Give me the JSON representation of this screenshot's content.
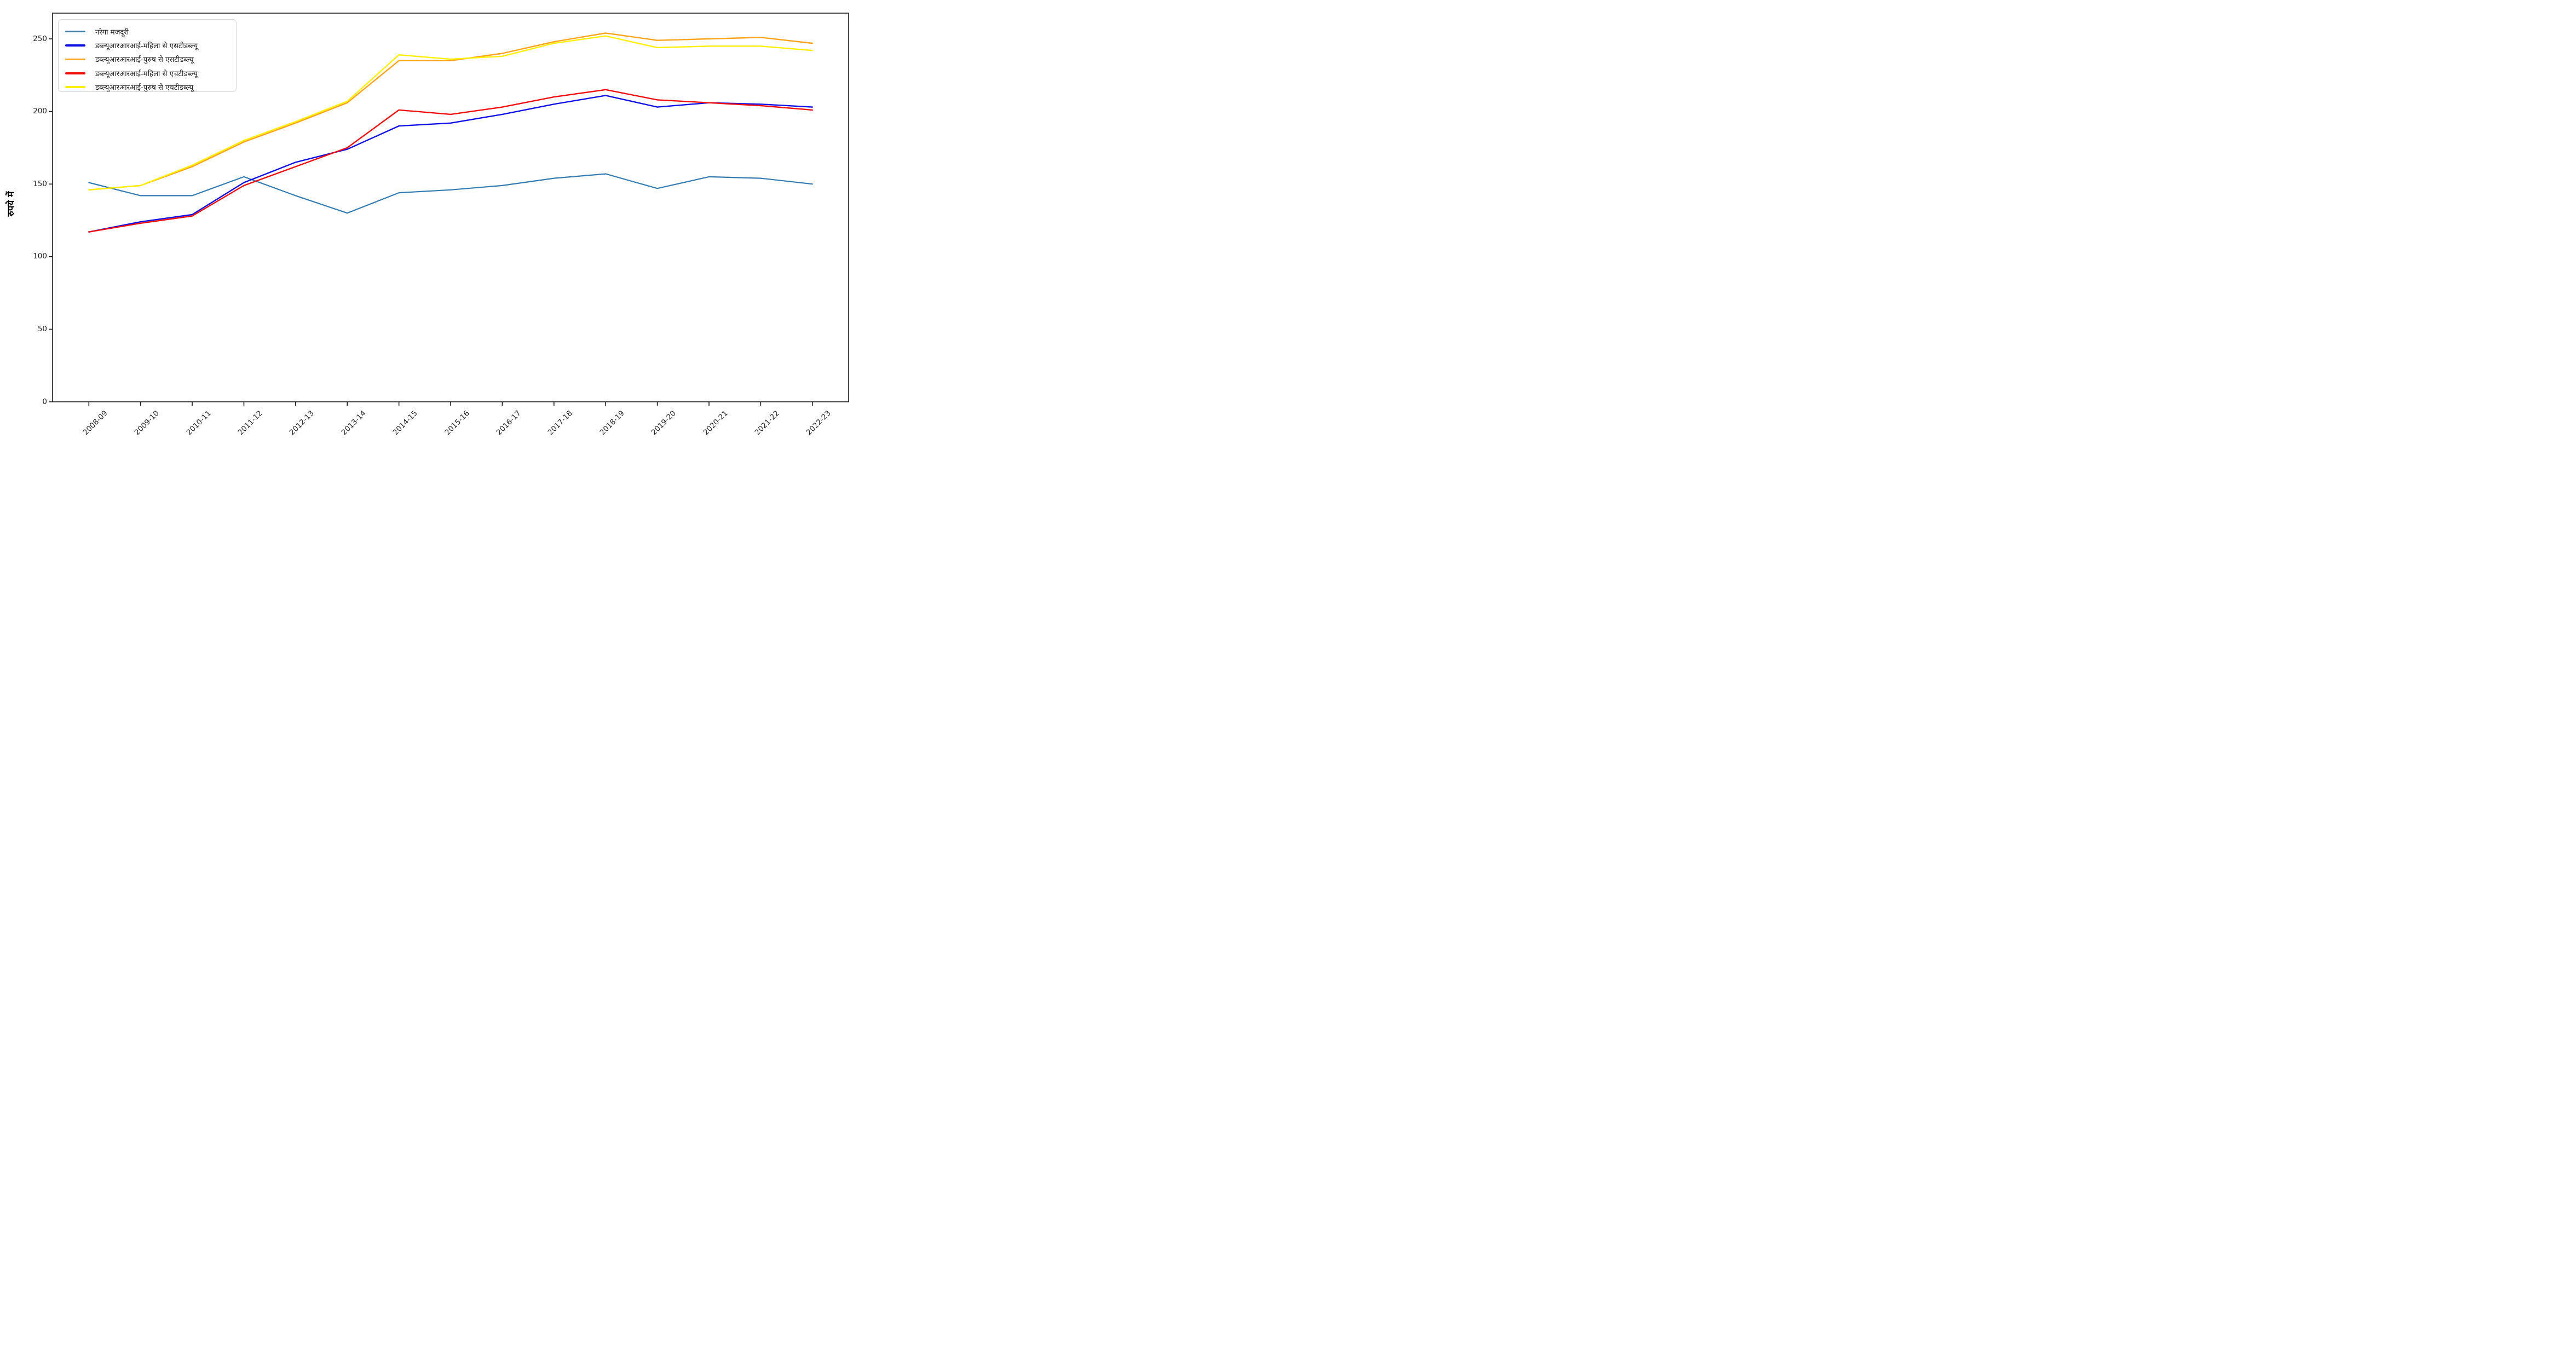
{
  "chart_data": {
    "type": "line",
    "title": "",
    "xlabel": "",
    "ylabel": "रुपये में",
    "categories": [
      "2008-09",
      "2009-10",
      "2010-11",
      "2011-12",
      "2012-13",
      "2013-14",
      "2014-15",
      "2015-16",
      "2016-17",
      "2017-18",
      "2018-19",
      "2019-20",
      "2020-21",
      "2021-22",
      "2022-23"
    ],
    "series": [
      {
        "name": "नरेगा मजदूरी",
        " color_note": "steel blue",
        "color": "#337cb2",
        "values": [
          151,
          142,
          142,
          155,
          142,
          130,
          144,
          146,
          149,
          154,
          157,
          147,
          155,
          154,
          150
        ]
      },
      {
        "name": "डब्ल्यूआरआरआई-महिला से एसटीडब्ल्यू",
        "color": "#0f0fe8",
        "values": [
          117,
          124,
          129,
          151,
          165,
          174,
          190,
          192,
          198,
          205,
          211,
          203,
          206,
          205,
          203
        ]
      },
      {
        "name": "डब्ल्यूआरआरआई-पुरुष से एसटीडब्ल्यू",
        "color": "#ffa318",
        "values": [
          146,
          149,
          162,
          179,
          192,
          206,
          235,
          235,
          240,
          248,
          254,
          249,
          250,
          251,
          247
        ]
      },
      {
        "name": "डब्ल्यूआरआरआई-महिला से एचटीडब्ल्यू",
        "color": "#f20d0d",
        "values": [
          117,
          123,
          128,
          149,
          162,
          175,
          201,
          198,
          203,
          210,
          215,
          208,
          206,
          204,
          201
        ]
      },
      {
        "name": "डब्ल्यूआरआरआई-पुरुष से एचटीडब्ल्यू",
        "color": "#fff000",
        "values": [
          146,
          149,
          163,
          180,
          193,
          207,
          239,
          236,
          238,
          247,
          252,
          244,
          245,
          245,
          242
        ]
      }
    ],
    "y_ticks": [
      0,
      50,
      100,
      150,
      200,
      250
    ],
    "ylim": [
      0,
      268
    ],
    "grid": false,
    "legend_position": "upper left"
  }
}
